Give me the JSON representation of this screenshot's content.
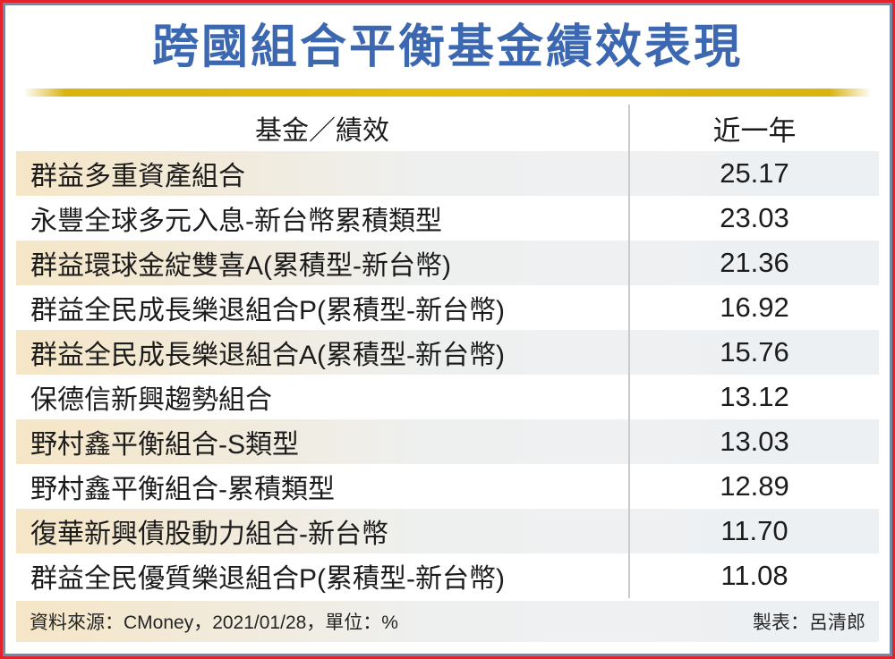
{
  "title": "跨國組合平衡基金績效表現",
  "table": {
    "headers": {
      "fund": "基金／績效",
      "period": "近一年"
    },
    "rows": [
      {
        "fund": "群益多重資產組合",
        "value": "25.17"
      },
      {
        "fund": "永豐全球多元入息-新台幣累積類型",
        "value": "23.03"
      },
      {
        "fund": "群益環球金綻雙喜A(累積型-新台幣)",
        "value": "21.36"
      },
      {
        "fund": "群益全民成長樂退組合P(累積型-新台幣)",
        "value": "16.92"
      },
      {
        "fund": "群益全民成長樂退組合A(累積型-新台幣)",
        "value": "15.76"
      },
      {
        "fund": "保德信新興趨勢組合",
        "value": "13.12"
      },
      {
        "fund": "野村鑫平衡組合-S類型",
        "value": "13.03"
      },
      {
        "fund": "野村鑫平衡組合-累積類型",
        "value": "12.89"
      },
      {
        "fund": "復華新興債股動力組合-新台幣",
        "value": "11.70"
      },
      {
        "fund": "群益全民優質樂退組合P(累積型-新台幣)",
        "value": "11.08"
      }
    ]
  },
  "footer": {
    "source": "資料來源：CMoney，2021/01/28，單位：%",
    "credit": "製表：呂清郎"
  },
  "colors": {
    "title_blue": "#3c67b1",
    "gold_bar": "#d9b310",
    "border_red": "#e3232b",
    "border_slate": "#7189a6",
    "row_peach": "#f5e6c6",
    "row_gray": "#edf0f3",
    "divider_gray": "#c9c9c9"
  },
  "chart_data": {
    "type": "table",
    "title": "跨國組合平衡基金績效表現",
    "columns": [
      "基金／績效",
      "近一年"
    ],
    "rows": [
      [
        "群益多重資產組合",
        25.17
      ],
      [
        "永豐全球多元入息-新台幣累積類型",
        23.03
      ],
      [
        "群益環球金綻雙喜A(累積型-新台幣)",
        21.36
      ],
      [
        "群益全民成長樂退組合P(累積型-新台幣)",
        16.92
      ],
      [
        "群益全民成長樂退組合A(累積型-新台幣)",
        15.76
      ],
      [
        "保德信新興趨勢組合",
        13.12
      ],
      [
        "野村鑫平衡組合-S類型",
        13.03
      ],
      [
        "野村鑫平衡組合-累積類型",
        12.89
      ],
      [
        "復華新興債股動力組合-新台幣",
        11.7
      ],
      [
        "群益全民優質樂退組合P(累積型-新台幣)",
        11.08
      ]
    ],
    "unit": "%",
    "source": "CMoney",
    "date": "2021/01/28"
  }
}
